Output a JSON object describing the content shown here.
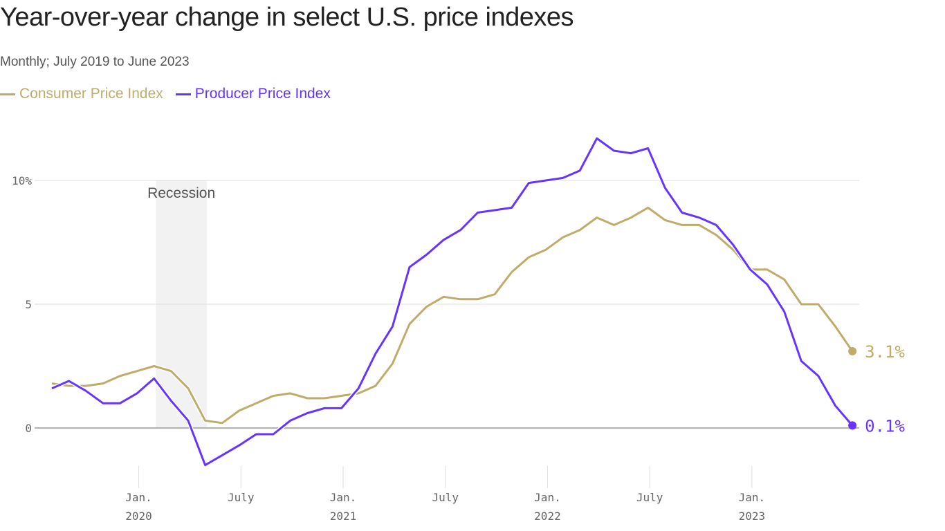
{
  "chart_data": {
    "type": "line",
    "title": "Year-over-year change in select U.S. price indexes",
    "subtitle": "Monthly; July 2019 to June 2023",
    "x_start": "2019-07",
    "x_end": "2023-06",
    "ylim": [
      -2,
      12
    ],
    "y_ticks": [
      {
        "value": 10,
        "label": "10%"
      },
      {
        "value": 5,
        "label": "5"
      },
      {
        "value": 0,
        "label": "0"
      }
    ],
    "x_ticks": [
      {
        "month": "2020-01",
        "label": "Jan.",
        "year": "2020"
      },
      {
        "month": "2020-07",
        "label": "July",
        "year": ""
      },
      {
        "month": "2021-01",
        "label": "Jan.",
        "year": "2021"
      },
      {
        "month": "2021-07",
        "label": "July",
        "year": ""
      },
      {
        "month": "2022-01",
        "label": "Jan.",
        "year": "2022"
      },
      {
        "month": "2022-07",
        "label": "July",
        "year": ""
      },
      {
        "month": "2023-01",
        "label": "Jan.",
        "year": "2023"
      }
    ],
    "grid": true,
    "legend_position": "top-left",
    "recession": {
      "label": "Recession",
      "start": "2020-02",
      "end": "2020-04",
      "color": "#f2f2f2"
    },
    "series": [
      {
        "name": "Consumer Price Index",
        "color": "#bfab6a",
        "end_label": "3.1%",
        "values": [
          1.8,
          1.7,
          1.7,
          1.8,
          2.1,
          2.3,
          2.5,
          2.3,
          1.6,
          0.3,
          0.2,
          0.7,
          1.0,
          1.3,
          1.4,
          1.2,
          1.2,
          1.3,
          1.4,
          1.7,
          2.6,
          4.2,
          4.9,
          5.3,
          5.2,
          5.2,
          5.4,
          6.3,
          6.9,
          7.2,
          7.7,
          8.0,
          8.5,
          8.2,
          8.5,
          8.9,
          8.4,
          8.2,
          8.2,
          7.8,
          7.2,
          6.4,
          6.4,
          6.0,
          5.0,
          5.0,
          4.1,
          3.1
        ]
      },
      {
        "name": "Producer Price Index",
        "color": "#6633ff",
        "end_label": "0.1%",
        "values": [
          1.6,
          1.9,
          1.5,
          1.0,
          1.0,
          1.4,
          2.0,
          1.1,
          0.3,
          -1.5,
          -1.1,
          -0.7,
          -0.25,
          -0.25,
          0.3,
          0.6,
          0.8,
          0.8,
          1.6,
          3.0,
          4.1,
          6.5,
          7.0,
          7.6,
          8.0,
          8.7,
          8.8,
          8.9,
          9.9,
          10.0,
          10.1,
          10.4,
          11.7,
          11.2,
          11.1,
          11.3,
          9.7,
          8.7,
          8.5,
          8.2,
          7.4,
          6.4,
          5.8,
          4.7,
          2.7,
          2.1,
          0.9,
          0.1
        ]
      }
    ]
  }
}
